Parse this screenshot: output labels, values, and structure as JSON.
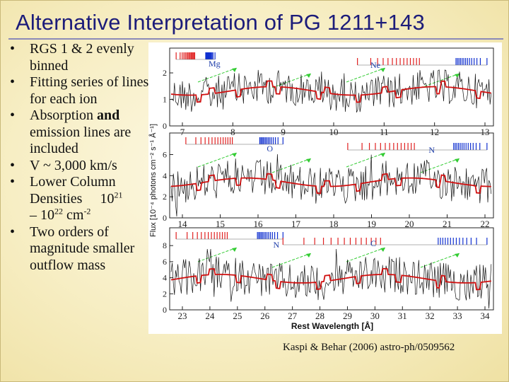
{
  "slide": {
    "title": "Alternative Interpretation of  PG 1211+143",
    "citation": "Kaspi & Behar (2006)  astro-ph/0509562"
  },
  "bullets": [
    {
      "text": "RGS 1 & 2 evenly binned"
    },
    {
      "text": "Fitting series of lines for each ion"
    },
    {
      "pre": "Absorption ",
      "bold": "and",
      "post": " emission lines are included"
    },
    {
      "text": "V ~ 3,000 km/s"
    },
    {
      "pre": "Lower Column Densities",
      "exp1": "21",
      "mid": "10",
      "dash": "– 10",
      "exp2": "22",
      "unit": "cm",
      "exp3": "-2"
    },
    {
      "text": "Two orders of magnitude smaller outflow mass"
    }
  ],
  "figure": {
    "x_axis_label": "Rest Wavelength [Å]",
    "y_axis_label": "Flux [10⁻⁴ photons cm⁻² s⁻¹ Å⁻¹]",
    "colors": {
      "data": "#111111",
      "model": "#d01010",
      "emission_ticks": "#e02020",
      "absorption_ticks": "#1030d0",
      "arrows": "#33cc33"
    },
    "panels": [
      {
        "x_ticks": [
          "7",
          "8",
          "9",
          "10",
          "11",
          "12",
          "13"
        ],
        "y_ticks": [
          "0",
          "1",
          "2"
        ],
        "ion_labels": [
          "Mg",
          "Ne"
        ]
      },
      {
        "x_ticks": [
          "14",
          "15",
          "16",
          "17",
          "18",
          "19",
          "20",
          "21",
          "22"
        ],
        "y_ticks": [
          "0",
          "2",
          "4",
          "6"
        ],
        "ion_labels": [
          "O",
          "N"
        ]
      },
      {
        "x_ticks": [
          "23",
          "24",
          "25",
          "26",
          "27",
          "28",
          "29",
          "30",
          "31",
          "32",
          "33",
          "34"
        ],
        "y_ticks": [
          "0",
          "2",
          "4",
          "6",
          "8"
        ],
        "ion_labels": [
          "C",
          "N"
        ]
      }
    ]
  }
}
